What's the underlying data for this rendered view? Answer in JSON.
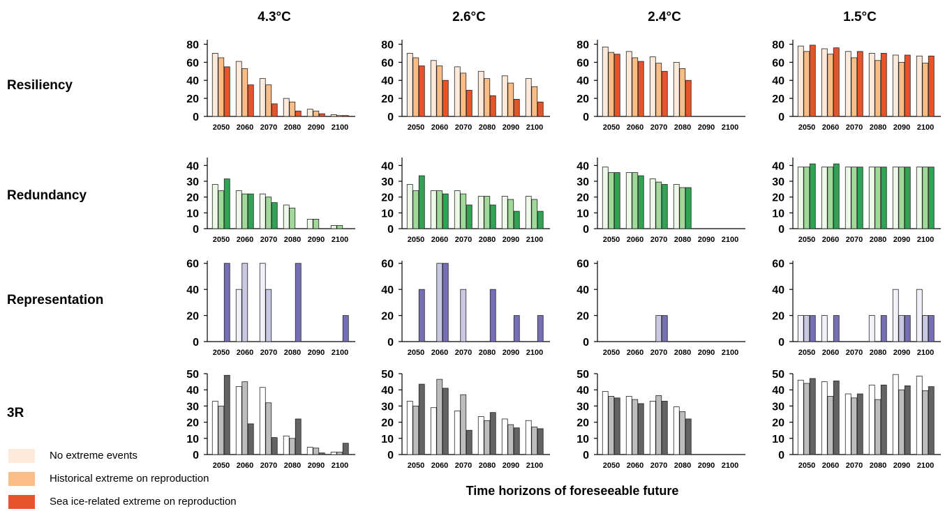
{
  "columns": [
    "4.3°C",
    "2.6°C",
    "2.4°C",
    "1.5°C"
  ],
  "rows": [
    "Resiliency",
    "Redundancy",
    "Representation",
    "3R"
  ],
  "xlabel": "Time horizons of foreseeable future",
  "legend": [
    {
      "label": "No extreme events",
      "color": "#fdeadb"
    },
    {
      "label": "Historical extreme on reproduction",
      "color": "#fbbd86"
    },
    {
      "label": "Sea ice-related extreme on reproduction",
      "color": "#e5542a"
    }
  ],
  "chart_data": {
    "type": "bar",
    "categories": [
      "2050",
      "2060",
      "2070",
      "2080",
      "2090",
      "2100"
    ],
    "series_names": [
      "No extreme events",
      "Historical extreme on reproduction",
      "Sea ice-related extreme on reproduction"
    ],
    "panels": [
      {
        "row": "Resiliency",
        "column": "4.3°C",
        "ylim": [
          0,
          85
        ],
        "yticks": [
          0,
          20,
          40,
          60,
          80
        ],
        "colors": [
          "#fdeadb",
          "#fbbd86",
          "#e5542a"
        ],
        "values": [
          [
            70,
            65,
            55
          ],
          [
            61,
            53,
            35
          ],
          [
            42,
            35,
            14
          ],
          [
            20,
            16,
            6
          ],
          [
            8,
            6,
            3
          ],
          [
            2,
            1,
            1
          ]
        ]
      },
      {
        "row": "Resiliency",
        "column": "2.6°C",
        "ylim": [
          0,
          85
        ],
        "yticks": [
          0,
          20,
          40,
          60,
          80
        ],
        "colors": [
          "#fdeadb",
          "#fbbd86",
          "#e5542a"
        ],
        "values": [
          [
            70,
            65,
            56
          ],
          [
            62,
            56,
            40
          ],
          [
            55,
            48,
            29
          ],
          [
            50,
            42,
            23
          ],
          [
            45,
            37,
            19
          ],
          [
            42,
            33,
            16
          ]
        ]
      },
      {
        "row": "Resiliency",
        "column": "2.4°C",
        "ylim": [
          0,
          85
        ],
        "yticks": [
          0,
          20,
          40,
          60,
          80
        ],
        "colors": [
          "#fdeadb",
          "#fbbd86",
          "#e5542a"
        ],
        "values": [
          [
            77,
            71,
            69
          ],
          [
            72,
            65,
            61
          ],
          [
            66,
            59,
            50
          ],
          [
            60,
            53,
            40
          ],
          [
            0,
            0,
            0
          ],
          [
            0,
            0,
            0
          ]
        ]
      },
      {
        "row": "Resiliency",
        "column": "1.5°C",
        "ylim": [
          0,
          85
        ],
        "yticks": [
          0,
          20,
          40,
          60,
          80
        ],
        "colors": [
          "#fdeadb",
          "#fbbd86",
          "#e5542a"
        ],
        "values": [
          [
            78,
            72,
            79
          ],
          [
            75,
            69,
            76
          ],
          [
            72,
            65,
            72
          ],
          [
            70,
            62,
            70
          ],
          [
            68,
            60,
            68
          ],
          [
            67,
            59,
            67
          ]
        ]
      },
      {
        "row": "Redundancy",
        "column": "4.3°C",
        "ylim": [
          0,
          45
        ],
        "yticks": [
          0,
          10,
          20,
          30,
          40
        ],
        "colors": [
          "#edf8e9",
          "#a1d99b",
          "#31a354"
        ],
        "values": [
          [
            28,
            24,
            31.5
          ],
          [
            24,
            22,
            22
          ],
          [
            22,
            20,
            16.5
          ],
          [
            15,
            13,
            0
          ],
          [
            6,
            6,
            0
          ],
          [
            2,
            2,
            0
          ]
        ]
      },
      {
        "row": "Redundancy",
        "column": "2.6°C",
        "ylim": [
          0,
          45
        ],
        "yticks": [
          0,
          10,
          20,
          30,
          40
        ],
        "colors": [
          "#edf8e9",
          "#a1d99b",
          "#31a354"
        ],
        "values": [
          [
            28,
            24,
            33.5
          ],
          [
            24,
            24,
            22
          ],
          [
            24,
            22,
            15
          ],
          [
            20.5,
            20.5,
            15
          ],
          [
            20.5,
            18.5,
            11
          ],
          [
            20.5,
            18.5,
            11
          ]
        ]
      },
      {
        "row": "Redundancy",
        "column": "2.4°C",
        "ylim": [
          0,
          45
        ],
        "yticks": [
          0,
          10,
          20,
          30,
          40
        ],
        "colors": [
          "#edf8e9",
          "#a1d99b",
          "#31a354"
        ],
        "values": [
          [
            39,
            35.5,
            35.5
          ],
          [
            35.5,
            35.5,
            33.5
          ],
          [
            31.5,
            29.5,
            28
          ],
          [
            28,
            26,
            26
          ],
          [
            0,
            0,
            0
          ],
          [
            0,
            0,
            0
          ]
        ]
      },
      {
        "row": "Redundancy",
        "column": "1.5°C",
        "ylim": [
          0,
          45
        ],
        "yticks": [
          0,
          10,
          20,
          30,
          40
        ],
        "colors": [
          "#edf8e9",
          "#a1d99b",
          "#31a354"
        ],
        "values": [
          [
            39,
            39,
            41
          ],
          [
            39,
            39,
            41
          ],
          [
            39,
            39,
            39
          ],
          [
            39,
            39,
            39
          ],
          [
            39,
            39,
            39
          ],
          [
            39,
            39,
            39
          ]
        ]
      },
      {
        "row": "Representation",
        "column": "4.3°C",
        "ylim": [
          0,
          62
        ],
        "yticks": [
          0,
          20,
          40,
          60
        ],
        "colors": [
          "#f2f1f9",
          "#c9c8e3",
          "#7570b3"
        ],
        "values": [
          [
            0,
            0,
            60
          ],
          [
            40,
            60,
            0
          ],
          [
            60,
            40,
            0
          ],
          [
            0,
            0,
            60
          ],
          [
            0,
            0,
            0
          ],
          [
            0,
            0,
            20
          ]
        ]
      },
      {
        "row": "Representation",
        "column": "2.6°C",
        "ylim": [
          0,
          62
        ],
        "yticks": [
          0,
          20,
          40,
          60
        ],
        "colors": [
          "#f2f1f9",
          "#c9c8e3",
          "#7570b3"
        ],
        "values": [
          [
            0,
            0,
            40
          ],
          [
            0,
            60,
            60
          ],
          [
            0,
            40,
            0
          ],
          [
            0,
            0,
            40
          ],
          [
            0,
            0,
            20
          ],
          [
            0,
            0,
            20
          ]
        ]
      },
      {
        "row": "Representation",
        "column": "2.4°C",
        "ylim": [
          0,
          62
        ],
        "yticks": [
          0,
          20,
          40,
          60
        ],
        "colors": [
          "#f2f1f9",
          "#c9c8e3",
          "#7570b3"
        ],
        "values": [
          [
            0,
            0,
            0
          ],
          [
            0,
            0,
            0
          ],
          [
            0,
            20,
            20
          ],
          [
            0,
            0,
            0
          ],
          [
            0,
            0,
            0
          ],
          [
            0,
            0,
            0
          ]
        ]
      },
      {
        "row": "Representation",
        "column": "1.5°C",
        "ylim": [
          0,
          62
        ],
        "yticks": [
          0,
          20,
          40,
          60
        ],
        "colors": [
          "#f2f1f9",
          "#c9c8e3",
          "#7570b3"
        ],
        "values": [
          [
            20,
            20,
            20
          ],
          [
            20,
            0,
            20
          ],
          [
            0,
            0,
            0
          ],
          [
            20,
            0,
            20
          ],
          [
            40,
            20,
            20
          ],
          [
            40,
            20,
            20
          ]
        ]
      },
      {
        "row": "3R",
        "column": "4.3°C",
        "ylim": [
          0,
          50
        ],
        "yticks": [
          0,
          10,
          20,
          30,
          40,
          50
        ],
        "colors": [
          "#ffffff",
          "#bdbdbd",
          "#636363"
        ],
        "values": [
          [
            33,
            30,
            49
          ],
          [
            42,
            45,
            19
          ],
          [
            41.5,
            32,
            10.5
          ],
          [
            11.5,
            10,
            22
          ],
          [
            4.5,
            4,
            1
          ],
          [
            1.5,
            1.5,
            7
          ]
        ]
      },
      {
        "row": "3R",
        "column": "2.6°C",
        "ylim": [
          0,
          50
        ],
        "yticks": [
          0,
          10,
          20,
          30,
          40,
          50
        ],
        "colors": [
          "#ffffff",
          "#bdbdbd",
          "#636363"
        ],
        "values": [
          [
            33,
            30,
            43.5
          ],
          [
            29,
            46.5,
            41
          ],
          [
            27,
            37,
            15
          ],
          [
            23.5,
            21,
            26
          ],
          [
            22,
            18.5,
            16.5
          ],
          [
            21,
            17,
            16
          ]
        ]
      },
      {
        "row": "3R",
        "column": "2.4°C",
        "ylim": [
          0,
          50
        ],
        "yticks": [
          0,
          10,
          20,
          30,
          40,
          50
        ],
        "colors": [
          "#ffffff",
          "#bdbdbd",
          "#636363"
        ],
        "values": [
          [
            39,
            36,
            35
          ],
          [
            36,
            34,
            31.5
          ],
          [
            33,
            36.5,
            33
          ],
          [
            29.5,
            26.5,
            22
          ],
          [
            0,
            0,
            0
          ],
          [
            0,
            0,
            0
          ]
        ]
      },
      {
        "row": "3R",
        "column": "1.5°C",
        "ylim": [
          0,
          50
        ],
        "yticks": [
          0,
          10,
          20,
          30,
          40,
          50
        ],
        "colors": [
          "#ffffff",
          "#bdbdbd",
          "#636363"
        ],
        "values": [
          [
            46,
            44,
            47
          ],
          [
            45,
            36,
            45.5
          ],
          [
            37.5,
            35,
            37.5
          ],
          [
            43,
            34,
            43
          ],
          [
            49.5,
            40,
            42.5
          ],
          [
            48.5,
            39.5,
            42
          ]
        ]
      }
    ]
  }
}
